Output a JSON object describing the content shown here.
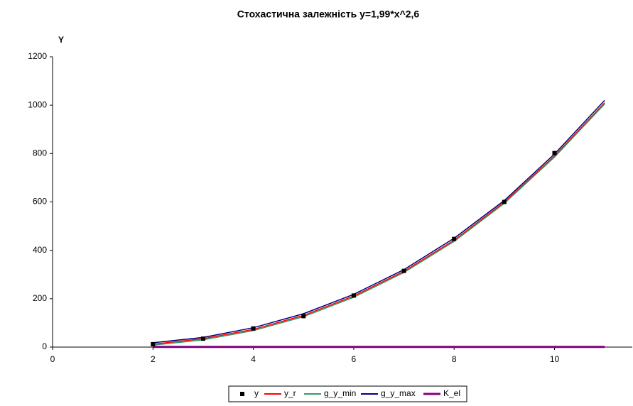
{
  "chart_data": {
    "type": "line",
    "title": "Стохастична залежність y=1,99*x^2,6",
    "y_label": "Y",
    "x": [
      2,
      3,
      4,
      5,
      6,
      7,
      8,
      9,
      10,
      11
    ],
    "series": [
      {
        "name": "y",
        "color": "#000000",
        "style": "markers",
        "values": [
          12,
          35,
          77,
          128,
          213,
          315,
          447,
          600,
          802,
          null
        ]
      },
      {
        "name": "y_r",
        "color": "#ff0000",
        "style": "line",
        "values": [
          12,
          35,
          73,
          131,
          211,
          313,
          442,
          599,
          790,
          1010
        ]
      },
      {
        "name": "g_y_min",
        "color": "#339966",
        "style": "line",
        "values": [
          8,
          30,
          68,
          126,
          206,
          308,
          437,
          594,
          785,
          1005
        ]
      },
      {
        "name": "g_y_max",
        "color": "#000080",
        "style": "line",
        "values": [
          18,
          40,
          80,
          138,
          218,
          320,
          450,
          606,
          798,
          1020
        ]
      },
      {
        "name": "K_el",
        "color": "#800080",
        "style": "thick",
        "values": [
          1,
          1,
          1,
          1,
          1,
          1,
          1,
          1,
          1,
          1
        ]
      }
    ],
    "xlim": [
      0,
      11.55
    ],
    "xticks": [
      0,
      2,
      4,
      6,
      8,
      10
    ],
    "ylim": [
      0,
      1200
    ],
    "yticks": [
      0,
      200,
      400,
      600,
      800,
      1000,
      1200
    ],
    "legend": "bottom"
  }
}
